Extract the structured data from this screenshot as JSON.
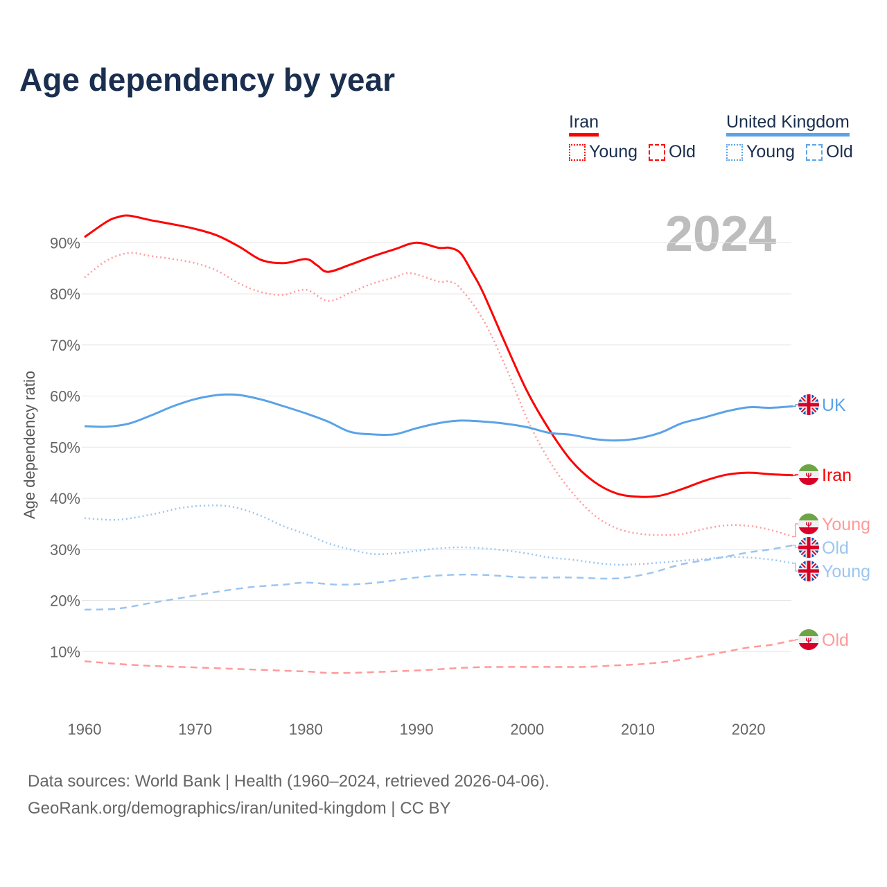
{
  "title": "Age dependency by year",
  "legend": {
    "groups": [
      {
        "name": "Iran",
        "color": "#ff0000",
        "light": "#ff9a9a",
        "items": [
          "Young",
          "Old"
        ]
      },
      {
        "name": "United Kingdom",
        "color": "#5aa3e8",
        "light": "#9cc5f0",
        "items": [
          "Young",
          "Old"
        ]
      }
    ]
  },
  "footer": {
    "line1": "Data sources: World Bank | Health (1960–2024, retrieved 2026-04-06).",
    "line2": "GeoRank.org/demographics/iran/united-kingdom | CC BY"
  },
  "chart_data": {
    "type": "line",
    "title": "Age dependency by year",
    "year_label": "2024",
    "xlabel": "",
    "ylabel": "Age dependency ratio",
    "xlim": [
      1960,
      2024
    ],
    "ylim": [
      0,
      97
    ],
    "x_ticks": [
      "1960",
      "1970",
      "1980",
      "1990",
      "2000",
      "2010",
      "2020"
    ],
    "y_ticks": [
      "10%",
      "20%",
      "30%",
      "40%",
      "50%",
      "60%",
      "70%",
      "80%",
      "90%"
    ],
    "grid": true,
    "series": [
      {
        "name": "Iran",
        "end_label": "Iran",
        "style": "solid",
        "color": "#ff0000",
        "flag": "iran",
        "x": [
          1960,
          1962,
          1963,
          1964,
          1966,
          1968,
          1970,
          1972,
          1974,
          1976,
          1978,
          1980,
          1981,
          1982,
          1984,
          1986,
          1988,
          1990,
          1992,
          1993,
          1994,
          1995,
          1996,
          1998,
          2000,
          2002,
          2004,
          2006,
          2008,
          2010,
          2012,
          2014,
          2016,
          2018,
          2020,
          2022,
          2024
        ],
        "values": [
          91.1,
          94.1,
          95,
          95.3,
          94.4,
          93.6,
          92.7,
          91.4,
          89.2,
          86.6,
          86,
          86.8,
          85.6,
          84.3,
          85.7,
          87.3,
          88.7,
          90,
          89,
          89,
          87.9,
          84.3,
          80.3,
          70.4,
          60.9,
          53.4,
          47.3,
          43.3,
          41,
          40.3,
          40.5,
          41.8,
          43.4,
          44.6,
          45,
          44.7,
          44.5
        ]
      },
      {
        "name": "Iran Young",
        "end_label": "Young",
        "style": "dotted",
        "color": "#ff9a9a",
        "flag": "iran",
        "x": [
          1960,
          1962,
          1964,
          1966,
          1968,
          1970,
          1972,
          1974,
          1976,
          1978,
          1980,
          1982,
          1984,
          1986,
          1988,
          1989,
          1990,
          1992,
          1993,
          1994,
          1996,
          1998,
          2000,
          2002,
          2004,
          2006,
          2008,
          2010,
          2012,
          2014,
          2016,
          2018,
          2020,
          2022,
          2024
        ],
        "values": [
          83.2,
          86.5,
          88,
          87.4,
          86.8,
          86,
          84.5,
          82,
          80.3,
          79.8,
          80.8,
          78.6,
          80.2,
          82,
          83.2,
          84,
          83.8,
          82.4,
          82.4,
          81,
          75,
          66,
          55.5,
          47.3,
          41.3,
          36.8,
          34.2,
          33.1,
          32.8,
          33,
          34,
          34.7,
          34.6,
          33.8,
          32.5
        ]
      },
      {
        "name": "Iran Old",
        "end_label": "Old",
        "style": "dashed",
        "color": "#ff9a9a",
        "flag": "iran",
        "x": [
          1960,
          1965,
          1970,
          1975,
          1980,
          1983,
          1990,
          1995,
          2000,
          2005,
          2008,
          2010,
          2013,
          2016,
          2018,
          2020,
          2022,
          2024
        ],
        "values": [
          8.1,
          7.3,
          6.9,
          6.5,
          6.1,
          5.8,
          6.3,
          6.9,
          7,
          7,
          7.3,
          7.5,
          8.1,
          9.2,
          10,
          10.8,
          11.3,
          12.2
        ]
      },
      {
        "name": "United Kingdom",
        "end_label": "UK",
        "style": "solid",
        "color": "#5aa3e8",
        "flag": "uk",
        "x": [
          1960,
          1962,
          1964,
          1966,
          1968,
          1970,
          1972,
          1973,
          1974,
          1976,
          1978,
          1980,
          1982,
          1984,
          1986,
          1988,
          1990,
          1992,
          1994,
          1996,
          1998,
          2000,
          2002,
          2004,
          2006,
          2008,
          2010,
          2012,
          2014,
          2016,
          2018,
          2020,
          2022,
          2024
        ],
        "values": [
          54.1,
          54,
          54.6,
          56.2,
          58,
          59.4,
          60.2,
          60.3,
          60.2,
          59.3,
          58,
          56.6,
          55,
          53,
          52.5,
          52.5,
          53.7,
          54.7,
          55.2,
          55,
          54.6,
          53.9,
          52.8,
          52.4,
          51.6,
          51.3,
          51.7,
          52.8,
          54.7,
          55.8,
          57,
          57.8,
          57.7,
          58
        ]
      },
      {
        "name": "United Kingdom Young",
        "end_label": "Young",
        "style": "dotted",
        "color": "#9cc5f0",
        "flag": "uk",
        "x": [
          1960,
          1963,
          1966,
          1969,
          1972,
          1974,
          1976,
          1978,
          1980,
          1982,
          1984,
          1986,
          1988,
          1990,
          1992,
          1994,
          1996,
          1998,
          2000,
          2002,
          2004,
          2006,
          2008,
          2010,
          2012,
          2014,
          2016,
          2018,
          2020,
          2022,
          2024
        ],
        "values": [
          36.1,
          35.8,
          36.8,
          38.2,
          38.6,
          38,
          36.5,
          34.5,
          33,
          31.2,
          30,
          29.1,
          29.2,
          29.7,
          30.2,
          30.4,
          30.2,
          29.8,
          29.2,
          28.4,
          28,
          27.4,
          27,
          27.1,
          27.4,
          27.8,
          28.1,
          28.5,
          28.4,
          28,
          27.3
        ]
      },
      {
        "name": "United Kingdom Old",
        "end_label": "Old",
        "style": "dashed",
        "color": "#9cc5f0",
        "flag": "uk",
        "x": [
          1960,
          1963,
          1966,
          1969,
          1972,
          1975,
          1978,
          1980,
          1983,
          1986,
          1990,
          1993,
          1996,
          2000,
          2004,
          2008,
          2011,
          2014,
          2017,
          2020,
          2022,
          2024
        ],
        "values": [
          18.2,
          18.4,
          19.5,
          20.6,
          21.7,
          22.6,
          23.1,
          23.5,
          23.1,
          23.4,
          24.5,
          25,
          25,
          24.5,
          24.5,
          24.3,
          25.3,
          27.1,
          28.2,
          29.4,
          30,
          30.8
        ]
      }
    ]
  }
}
